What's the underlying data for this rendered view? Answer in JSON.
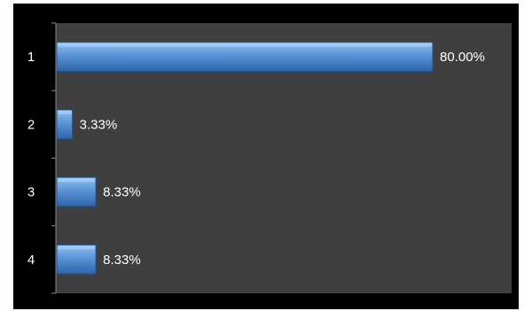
{
  "chart_data": {
    "type": "bar",
    "orientation": "horizontal",
    "categories": [
      "1",
      "2",
      "3",
      "4"
    ],
    "values": [
      80.0,
      3.33,
      8.33,
      8.33
    ],
    "value_labels": [
      "80.00%",
      "3.33%",
      "8.33%",
      "8.33%"
    ],
    "xlim": [
      0,
      100
    ],
    "title": "",
    "xlabel": "",
    "ylabel": "",
    "grid": false,
    "legend": "none",
    "colors": {
      "figure_background": "#000000",
      "plot_background": "#3f3f3f",
      "bar_top": "#8ec0ee",
      "bar_bottom": "#2e63a8",
      "bar_stroke": "#1f4e8c",
      "axis": "#8a8a8a",
      "text": "#ffffff"
    }
  }
}
